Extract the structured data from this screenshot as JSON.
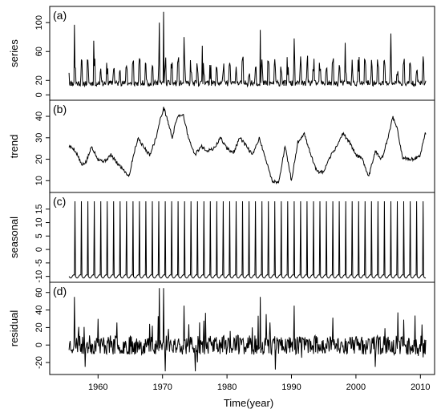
{
  "chart_data": [
    {
      "type": "line",
      "panel_label": "(a)",
      "ylabel": "series",
      "yticks": [
        0,
        20,
        60,
        100
      ],
      "ylim": [
        -3,
        118
      ],
      "xlim": [
        1952.5,
        2012.2
      ],
      "grid": false,
      "series": [
        {
          "values_note_free": true,
          "kind": "generated",
          "base": 12,
          "peak_min": 30,
          "peak_max": 75,
          "amp_scale": 1.0,
          "seed": 11,
          "big_peaks": [
            [
              1956.3,
              97
            ],
            [
              1970.2,
              115
            ],
            [
              1969.5,
              100
            ],
            [
              1985.2,
              90
            ],
            [
              1990.4,
              78
            ],
            [
              2005.4,
              85
            ],
            [
              1973.3,
              80
            ],
            [
              1959.3,
              75
            ],
            [
              1998.3,
              72
            ],
            [
              1976.2,
              68
            ]
          ]
        }
      ]
    },
    {
      "type": "line",
      "panel_label": "(b)",
      "ylabel": "trend",
      "yticks": [
        10,
        20,
        30,
        40
      ],
      "ylim": [
        6,
        46
      ],
      "xlim": [
        1952.5,
        2012.2
      ],
      "grid": false,
      "series": [
        {
          "kind": "knots",
          "x": [
            1955.5,
            1956.2,
            1956.8,
            1957.5,
            1958.2,
            1959.0,
            1960.0,
            1961.0,
            1962.0,
            1963.0,
            1964.0,
            1964.8,
            1965.5,
            1966.2,
            1967.0,
            1968.0,
            1969.0,
            1969.6,
            1970.2,
            1970.8,
            1971.5,
            1972.3,
            1973.2,
            1974.0,
            1975.0,
            1976.0,
            1977.0,
            1978.0,
            1979.0,
            1980.0,
            1981.0,
            1982.0,
            1983.0,
            1984.0,
            1985.0,
            1986.0,
            1987.0,
            1988.0,
            1989.0,
            1990.0,
            1991.0,
            1992.0,
            1993.0,
            1994.0,
            1995.0,
            1996.0,
            1997.0,
            1998.0,
            1999.0,
            2000.0,
            2001.0,
            2002.0,
            2003.0,
            2004.0,
            2005.0,
            2005.7,
            2006.5,
            2007.2,
            2008.0,
            2009.0,
            2010.0,
            2010.7
          ],
          "y": [
            26,
            25,
            22,
            17,
            19,
            26,
            20,
            19,
            22,
            18,
            15,
            12,
            22,
            30,
            26,
            22,
            30,
            38,
            44,
            38,
            30,
            40,
            41,
            30,
            22,
            26,
            24,
            25,
            30,
            25,
            23,
            30,
            26,
            22,
            30,
            20,
            10,
            9,
            26,
            10,
            28,
            32,
            22,
            14,
            14,
            21,
            26,
            32,
            28,
            22,
            20,
            12,
            24,
            20,
            30,
            40,
            33,
            21,
            20,
            20,
            22,
            32
          ]
        }
      ]
    },
    {
      "type": "line",
      "panel_label": "(c)",
      "ylabel": "seasonal",
      "yticks": [
        -10,
        -5,
        0,
        5,
        10,
        15
      ],
      "ylim": [
        -11,
        20
      ],
      "xlim": [
        1952.5,
        2012.2
      ],
      "grid": false,
      "series": [
        {
          "kind": "seasonal",
          "min": -10,
          "max": 19,
          "period_years": 1
        }
      ]
    },
    {
      "type": "line",
      "panel_label": "(d)",
      "ylabel": "residual",
      "yticks": [
        -20,
        0,
        20,
        40,
        60
      ],
      "ylim": [
        -30,
        68
      ],
      "xlim": [
        1952.5,
        2012.2
      ],
      "grid": false,
      "series": [
        {
          "kind": "generated-residual",
          "seed": 23,
          "big_peaks": [
            [
              1956.3,
              55
            ],
            [
              1969.5,
              65
            ],
            [
              1970.2,
              65
            ],
            [
              1985.2,
              55
            ],
            [
              1973.3,
              45
            ],
            [
              1990.4,
              45
            ],
            [
              1958.0,
              -25
            ],
            [
              1970.4,
              -30
            ],
            [
              1975.1,
              -33
            ],
            [
              1987.5,
              -28
            ],
            [
              2003.0,
              -25
            ]
          ]
        }
      ]
    }
  ],
  "x_axis": {
    "label": "Time(year)",
    "ticks": [
      1960,
      1970,
      1980,
      1990,
      2000,
      2010
    ],
    "data_range": [
      1955.5,
      2010.8
    ]
  }
}
